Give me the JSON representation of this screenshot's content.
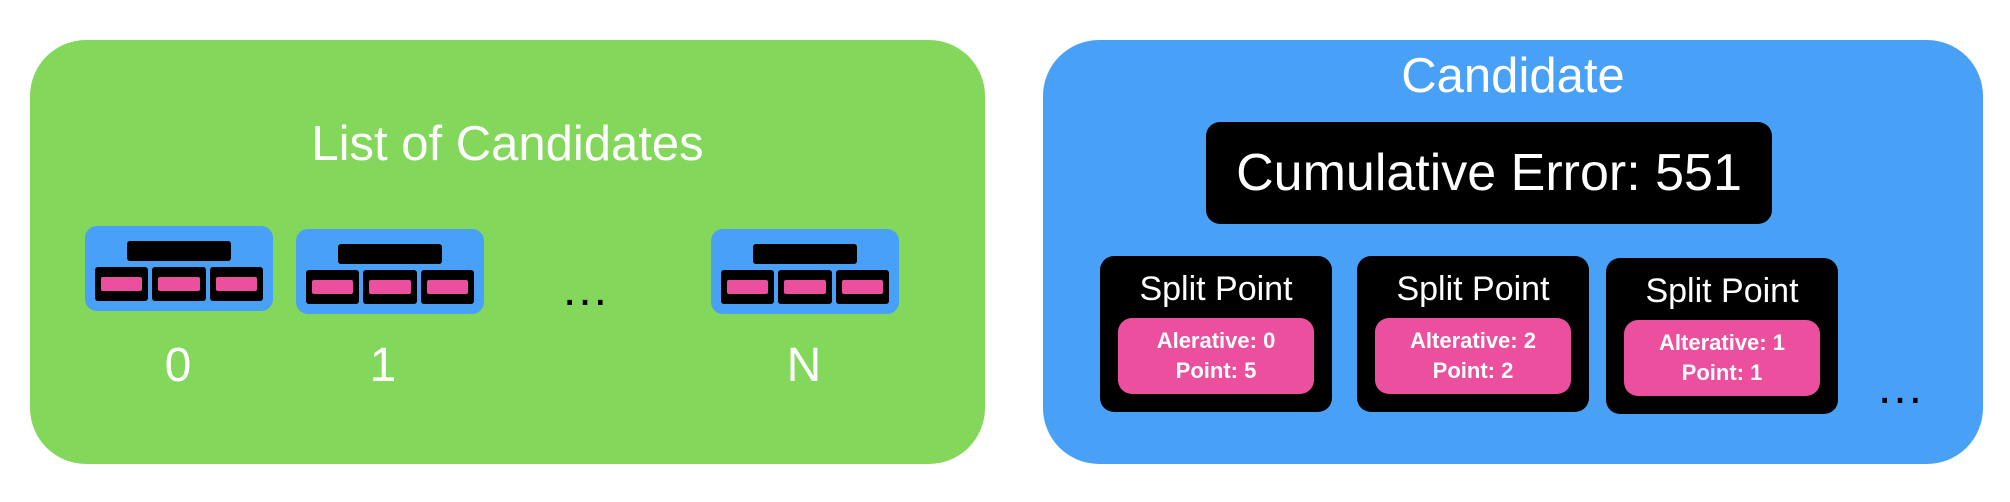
{
  "list_panel": {
    "title": "List of Candidates",
    "indices": [
      "0",
      "1",
      "N"
    ],
    "ellipsis": "..."
  },
  "candidate_panel": {
    "title": "Candidate",
    "cumulative_error": "Cumulative Error: 551",
    "split_points": [
      {
        "title": "Split Point",
        "alternative": "Alerative: 0",
        "point": "Point: 5"
      },
      {
        "title": "Split Point",
        "alternative": "Alterative: 2",
        "point": "Point: 2"
      },
      {
        "title": "Split Point",
        "alternative": "Alterative: 1",
        "point": "Point: 1"
      }
    ],
    "ellipsis": "..."
  },
  "colors": {
    "list_panel_bg": "#83d75a",
    "candidate_panel_bg": "#48a0f7",
    "dark_box": "#000000",
    "pink": "#ec4f9e"
  }
}
